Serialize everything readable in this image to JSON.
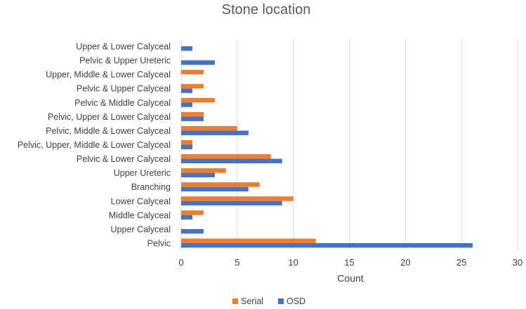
{
  "chart_data": {
    "type": "bar",
    "orientation": "horizontal",
    "title": "Stone location",
    "xlabel": "Count",
    "ylabel": "",
    "xlim": [
      0,
      30
    ],
    "xticks": [
      0,
      5,
      10,
      15,
      20,
      25,
      30
    ],
    "grid": true,
    "legend_position": "bottom",
    "categories": [
      "Pelvic",
      "Upper Calyceal",
      "Middle Calyceal",
      "Lower Calyceal",
      "Branching",
      "Upper Ureteric",
      "Pelvic & Lower Calyceal",
      "Pelvic, Upper, Middle & Lower Calyceal",
      "Pelvic, Middle & Lower Calyceal",
      "Pelvic, Upper & Lower Calyceal",
      "Pelvic & Middle Calyceal",
      "Pelvic & Upper Calyceal",
      "Upper, Middle & Lower Calyceal",
      "Pelvic & Upper Ureteric",
      "Upper & Lower Calyceal"
    ],
    "series": [
      {
        "name": "Serial",
        "color": "#ed7d31",
        "values": [
          12,
          0,
          2,
          10,
          7,
          4,
          8,
          1,
          5,
          2,
          3,
          2,
          2,
          0,
          0
        ]
      },
      {
        "name": "OSD",
        "color": "#4472c4",
        "values": [
          26,
          2,
          1,
          9,
          6,
          3,
          9,
          1,
          6,
          2,
          1,
          1,
          0,
          3,
          1
        ]
      }
    ]
  }
}
